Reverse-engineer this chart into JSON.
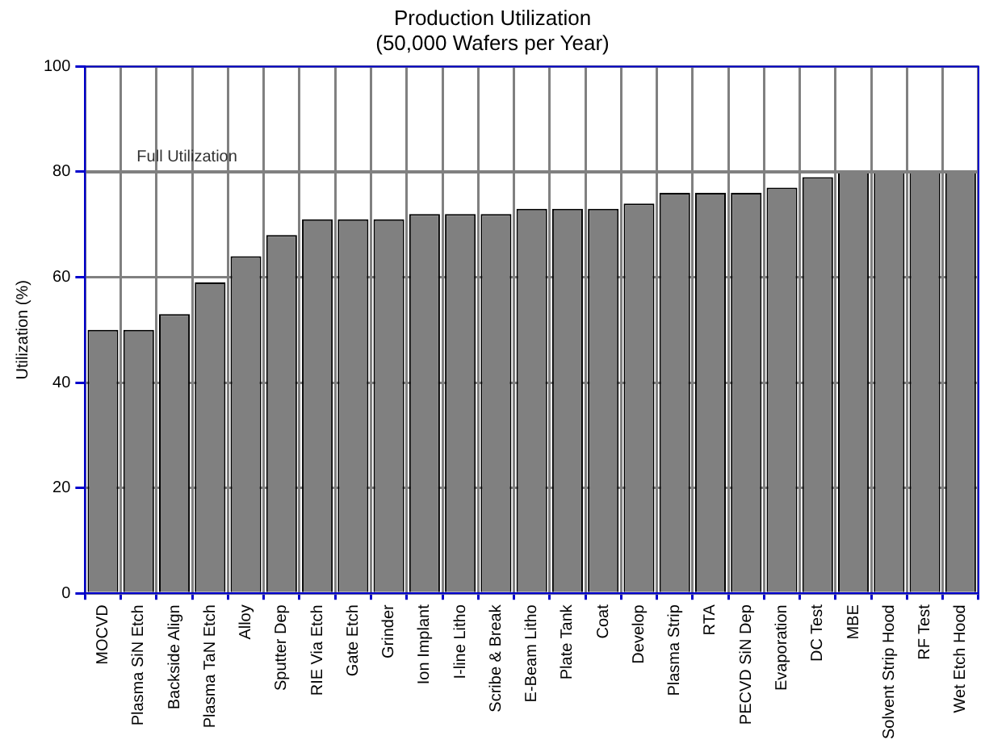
{
  "chart_data": {
    "type": "bar",
    "title": "Production Utilization\n(50,000 Wafers per Year)",
    "ylabel": "Utilization (%)",
    "categories": [
      "MOCVD",
      "Plasma SiN Etch",
      "Backside Align",
      "Plasma TaN Etch",
      "Alloy",
      "Sputter Dep",
      "RIE Via Etch",
      "Gate Etch",
      "Grinder",
      "Ion Implant",
      "I-line Litho",
      "Scribe & Break",
      "E-Beam Litho",
      "Plate Tank",
      "Coat",
      "Develop",
      "Plasma Strip",
      "RTA",
      "PECVD SiN Dep",
      "Evaporation",
      "DC Test",
      "MBE",
      "Solvent Strip Hood",
      "RF Test",
      "Wet Etch Hood"
    ],
    "values": [
      50,
      50,
      53,
      59,
      64,
      68,
      71,
      71,
      71,
      72,
      72,
      72,
      73,
      73,
      73,
      74,
      76,
      76,
      76,
      77,
      79,
      80,
      80,
      80,
      80
    ],
    "color": "#808080",
    "ylim": [
      0,
      100
    ],
    "yticks": [
      0,
      20,
      40,
      60,
      80,
      100
    ],
    "grid": true,
    "ref_lines": [
      {
        "axis": "y",
        "value": 80,
        "label": "Full Utilization",
        "color": "#808080"
      }
    ]
  }
}
